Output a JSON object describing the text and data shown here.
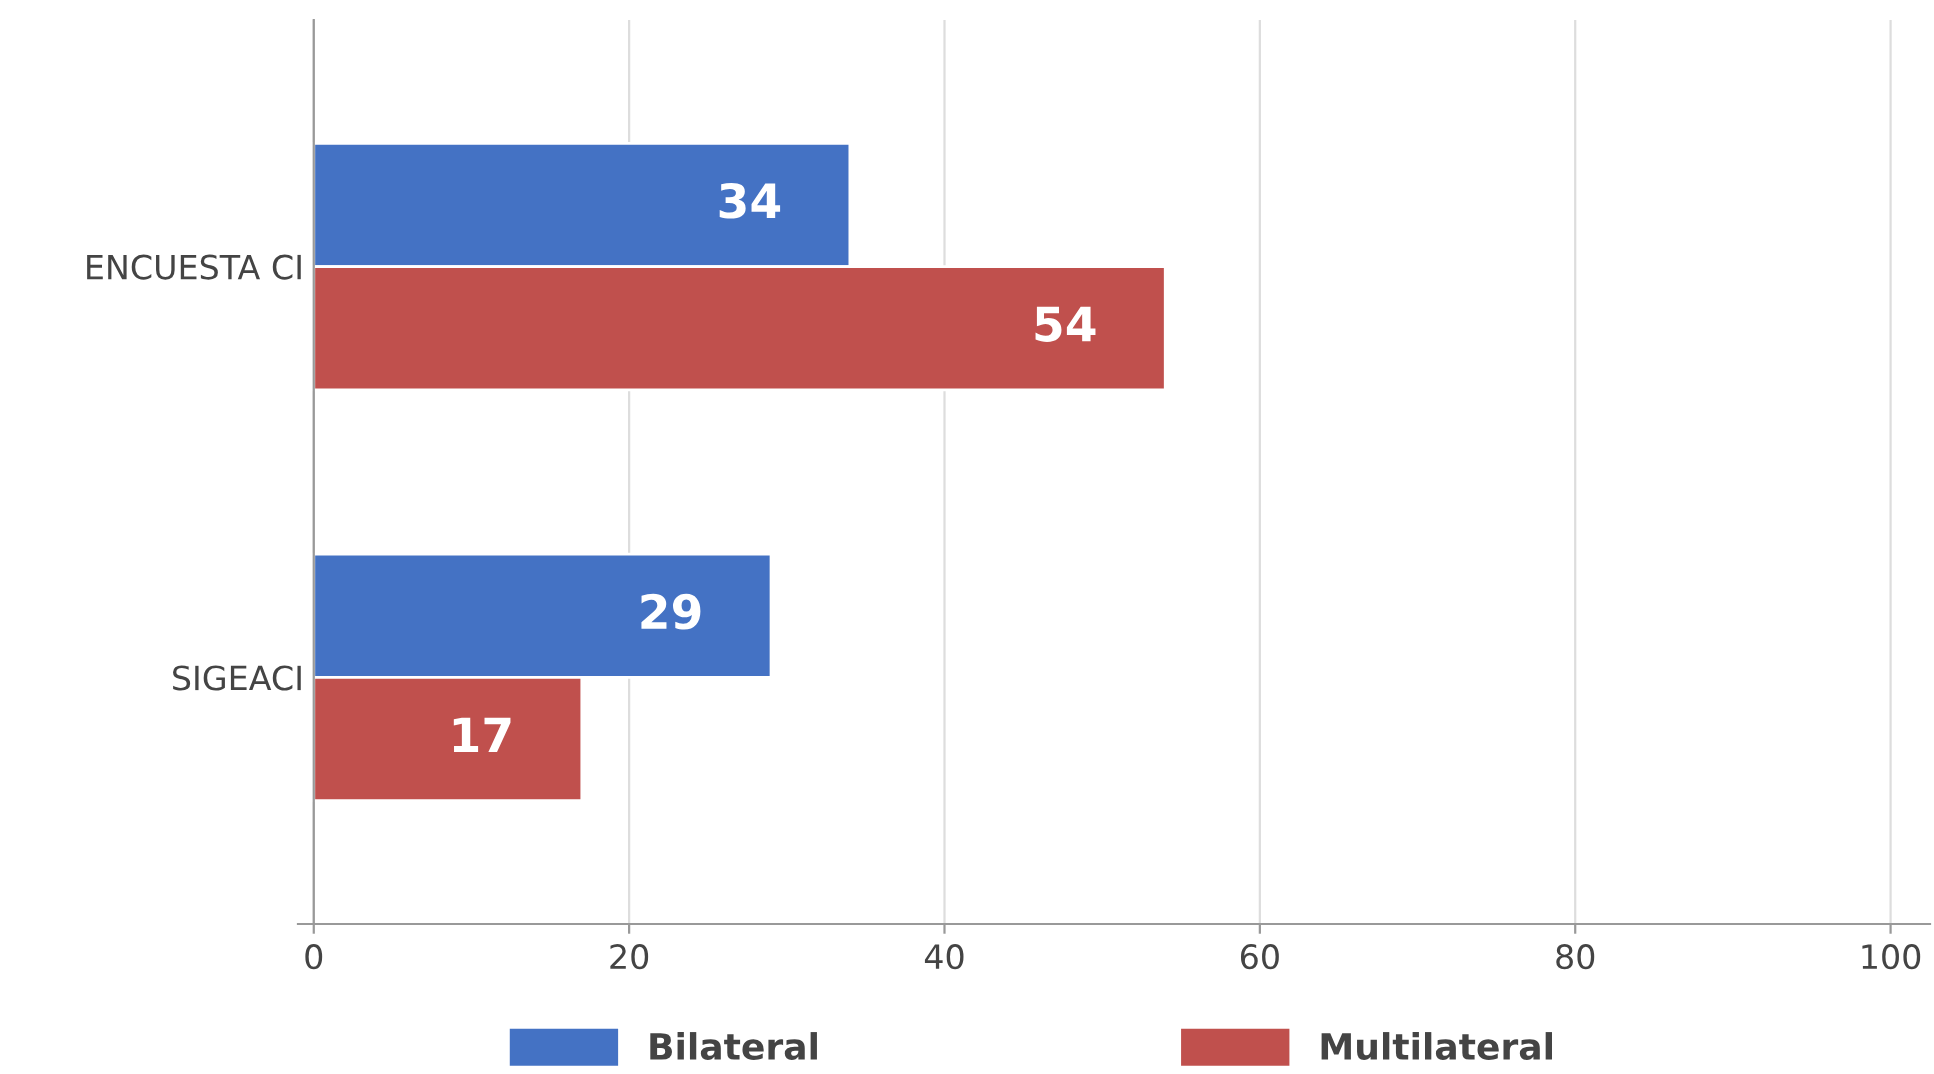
{
  "chart_data": {
    "type": "bar",
    "orientation": "horizontal",
    "categories": [
      "ENCUESTA CI",
      "SIGEACI"
    ],
    "series": [
      {
        "name": "Bilateral",
        "color": "#4472c4",
        "values": [
          34,
          29
        ]
      },
      {
        "name": "Multilateral",
        "color": "#c0504d",
        "values": [
          54,
          17
        ]
      }
    ],
    "xlim": [
      -1,
      102.5
    ],
    "xticks": [
      0,
      20,
      40,
      60,
      80,
      100
    ],
    "grid": "x",
    "legend": "bottom",
    "data_labels": true
  }
}
